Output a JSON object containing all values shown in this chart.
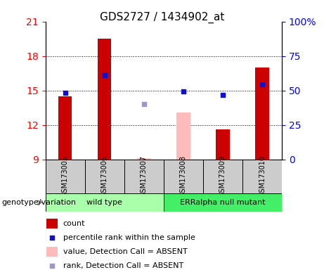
{
  "title": "GDS2727 / 1434902_at",
  "samples": [
    "GSM173005",
    "GSM173006",
    "GSM173007",
    "GSM173008",
    "GSM173009",
    "GSM173010"
  ],
  "groups": [
    {
      "label": "wild type",
      "start": 0,
      "end": 3,
      "color": "#aaffaa"
    },
    {
      "label": "ERRalpha null mutant",
      "start": 3,
      "end": 6,
      "color": "#44ee66"
    }
  ],
  "ylim_left": [
    9,
    21
  ],
  "ylim_right": [
    0,
    100
  ],
  "yticks_left": [
    9,
    12,
    15,
    18,
    21
  ],
  "yticks_right": [
    0,
    25,
    50,
    75,
    100
  ],
  "ytick_labels_right": [
    "0",
    "25",
    "50",
    "75",
    "100%"
  ],
  "bar_values": [
    14.5,
    19.5,
    null,
    null,
    11.6,
    17.0
  ],
  "bar_absent_values": [
    null,
    null,
    9.1,
    13.1,
    null,
    null
  ],
  "dot_values": [
    14.8,
    16.3,
    null,
    14.9,
    14.6,
    15.5
  ],
  "dot_absent_values": [
    null,
    null,
    13.8,
    null,
    null,
    null
  ],
  "bar_color": "#cc0000",
  "bar_absent_color": "#ffbbbb",
  "dot_color": "#1111cc",
  "dot_absent_color": "#9999cc",
  "bar_width": 0.35,
  "bar_bottom": 9,
  "hgrid_lines": [
    12,
    15,
    18
  ],
  "legend_items": [
    {
      "label": "count",
      "color": "#cc0000",
      "type": "bar"
    },
    {
      "label": "percentile rank within the sample",
      "color": "#1111cc",
      "type": "dot"
    },
    {
      "label": "value, Detection Call = ABSENT",
      "color": "#ffbbbb",
      "type": "bar"
    },
    {
      "label": "rank, Detection Call = ABSENT",
      "color": "#9999cc",
      "type": "dot"
    }
  ],
  "genotype_label": "genotype/variation"
}
